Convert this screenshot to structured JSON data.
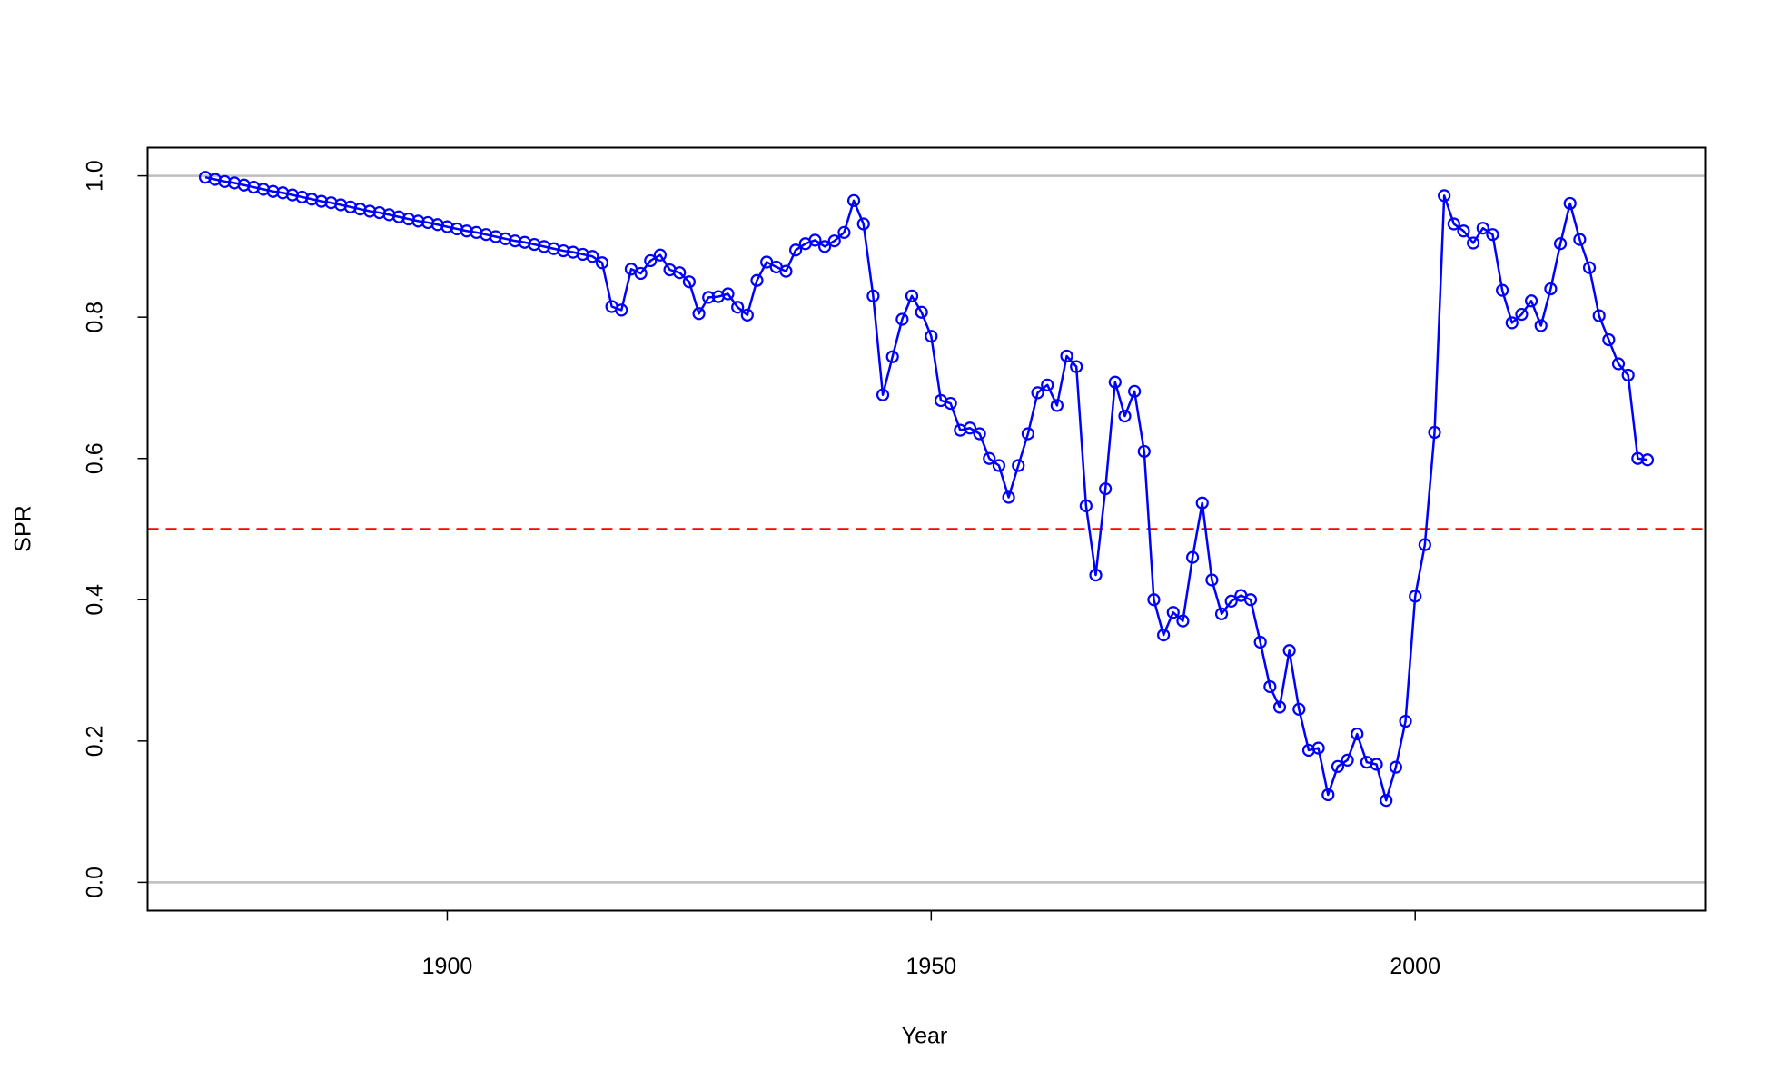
{
  "chart_data": {
    "type": "line",
    "x_label": "Year",
    "y_label": "SPR",
    "color": "#0000ff",
    "markers": "open-circle",
    "x": [
      1875,
      1876,
      1877,
      1878,
      1879,
      1880,
      1881,
      1882,
      1883,
      1884,
      1885,
      1886,
      1887,
      1888,
      1889,
      1890,
      1891,
      1892,
      1893,
      1894,
      1895,
      1896,
      1897,
      1898,
      1899,
      1900,
      1901,
      1902,
      1903,
      1904,
      1905,
      1906,
      1907,
      1908,
      1909,
      1910,
      1911,
      1912,
      1913,
      1914,
      1915,
      1916,
      1917,
      1918,
      1919,
      1920,
      1921,
      1922,
      1923,
      1924,
      1925,
      1926,
      1927,
      1928,
      1929,
      1930,
      1931,
      1932,
      1933,
      1934,
      1935,
      1936,
      1937,
      1938,
      1939,
      1940,
      1941,
      1942,
      1943,
      1944,
      1945,
      1946,
      1947,
      1948,
      1949,
      1950,
      1951,
      1952,
      1953,
      1954,
      1955,
      1956,
      1957,
      1958,
      1959,
      1960,
      1961,
      1962,
      1963,
      1964,
      1965,
      1966,
      1967,
      1968,
      1969,
      1970,
      1971,
      1972,
      1973,
      1974,
      1975,
      1976,
      1977,
      1978,
      1979,
      1980,
      1981,
      1982,
      1983,
      1984,
      1985,
      1986,
      1987,
      1988,
      1989,
      1990,
      1991,
      1992,
      1993,
      1994,
      1995,
      1996,
      1997,
      1998,
      1999,
      2000,
      2001,
      2002,
      2003,
      2004,
      2005,
      2006,
      2007,
      2008,
      2009,
      2010,
      2011,
      2012,
      2013,
      2014,
      2015,
      2016,
      2017,
      2018,
      2019,
      2020,
      2021,
      2022,
      2023,
      2024
    ],
    "values": [
      0.998,
      0.995,
      0.992,
      0.99,
      0.987,
      0.984,
      0.981,
      0.978,
      0.976,
      0.973,
      0.97,
      0.967,
      0.964,
      0.962,
      0.959,
      0.956,
      0.953,
      0.95,
      0.948,
      0.945,
      0.942,
      0.939,
      0.936,
      0.934,
      0.931,
      0.928,
      0.925,
      0.922,
      0.92,
      0.917,
      0.914,
      0.911,
      0.908,
      0.906,
      0.903,
      0.9,
      0.897,
      0.894,
      0.892,
      0.889,
      0.886,
      0.877,
      0.815,
      0.81,
      0.868,
      0.862,
      0.88,
      0.888,
      0.867,
      0.863,
      0.85,
      0.805,
      0.828,
      0.829,
      0.833,
      0.814,
      0.803,
      0.852,
      0.878,
      0.871,
      0.865,
      0.895,
      0.904,
      0.909,
      0.9,
      0.908,
      0.92,
      0.965,
      0.932,
      0.83,
      0.69,
      0.744,
      0.797,
      0.83,
      0.807,
      0.773,
      0.682,
      0.678,
      0.64,
      0.643,
      0.635,
      0.6,
      0.59,
      0.545,
      0.59,
      0.635,
      0.693,
      0.704,
      0.675,
      0.745,
      0.73,
      0.533,
      0.435,
      0.557,
      0.708,
      0.66,
      0.695,
      0.61,
      0.4,
      0.35,
      0.382,
      0.37,
      0.46,
      0.537,
      0.428,
      0.38,
      0.398,
      0.406,
      0.4,
      0.34,
      0.277,
      0.248,
      0.328,
      0.245,
      0.187,
      0.19,
      0.124,
      0.164,
      0.173,
      0.21,
      0.17,
      0.167,
      0.116,
      0.163,
      0.228,
      0.405,
      0.478,
      0.637,
      0.972,
      0.932,
      0.922,
      0.905,
      0.926,
      0.917,
      0.838,
      0.792,
      0.804,
      0.823,
      0.788,
      0.84,
      0.904,
      0.961,
      0.91,
      0.87,
      0.802,
      0.768,
      0.734,
      0.718,
      0.6,
      0.598
    ],
    "xlim": [
      1869.04,
      2029.96
    ],
    "ylim": [
      -0.04,
      1.04
    ],
    "xticks": [
      1900,
      1950,
      2000
    ],
    "yticks": [
      {
        "value": 0,
        "label": "0.0"
      },
      0.2,
      0.4,
      0.6,
      0.8,
      {
        "value": 1,
        "label": "1.0"
      }
    ],
    "hlines": [
      {
        "value": 0,
        "color": "#bebebe",
        "dashed": false
      },
      {
        "value": 1,
        "color": "#bebebe",
        "dashed": false
      },
      {
        "value": 0.5,
        "color": "#ff0000",
        "dashed": true
      }
    ]
  }
}
